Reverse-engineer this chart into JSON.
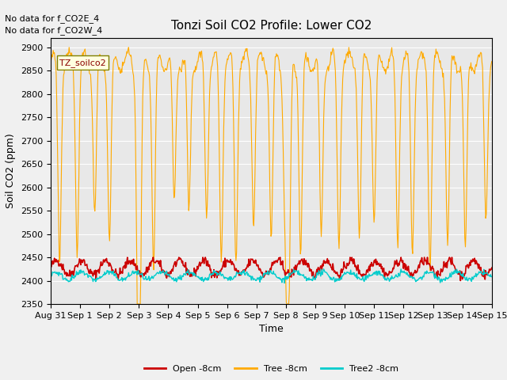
{
  "title": "Tonzi Soil CO2 Profile: Lower CO2",
  "ylabel": "Soil CO2 (ppm)",
  "xlabel": "Time",
  "ylim": [
    2350,
    2920
  ],
  "annotation_lines": [
    "No data for f_CO2E_4",
    "No data for f_CO2W_4"
  ],
  "legend_label": "TZ_soilco2",
  "series_labels": [
    "Open -8cm",
    "Tree -8cm",
    "Tree2 -8cm"
  ],
  "series_colors": [
    "#cc0000",
    "#ffaa00",
    "#00cccc"
  ],
  "background_color": "#e8e8e8",
  "grid_color": "#ffffff",
  "x_tick_labels": [
    "Aug 31",
    "Sep 1",
    "Sep 2",
    "Sep 3",
    "Sep 4",
    "Sep 5",
    "Sep 6",
    "Sep 7",
    "Sep 8",
    "Sep 9",
    "Sep 10",
    "Sep 11",
    "Sep 12",
    "Sep 13",
    "Sep 14",
    "Sep 15"
  ],
  "open_base": 2428,
  "open_amplitude": 15,
  "tree2_base": 2410,
  "tree2_amplitude": 8
}
